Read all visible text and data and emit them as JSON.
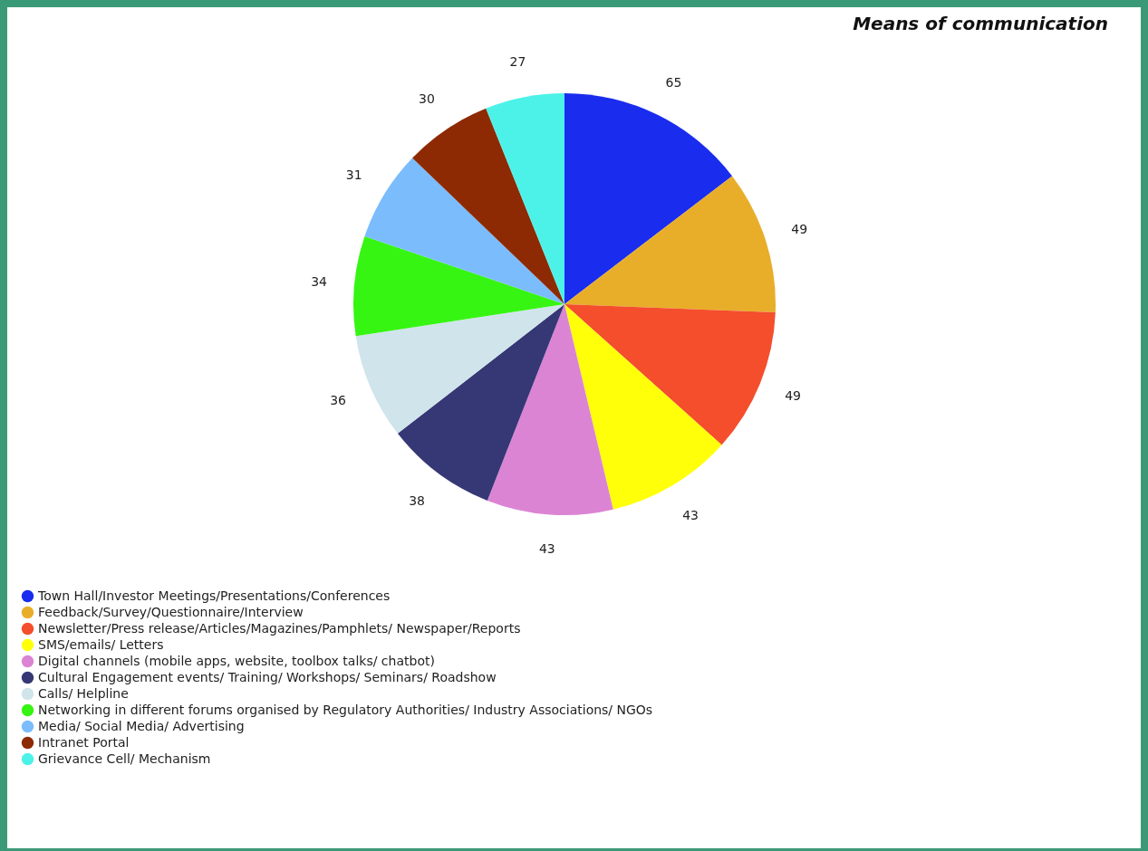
{
  "chart_data": {
    "type": "pie",
    "title": "Means of communication",
    "categories": [
      "Town Hall/Investor Meetings/Presentations/Conferences",
      "Feedback/Survey/Questionnaire/Interview",
      "Newsletter/Press release/Articles/Magazines/Pamphlets/ Newspaper/Reports",
      "SMS/emails/ Letters",
      "Digital channels (mobile apps, website, toolbox talks/ chatbot)",
      "Cultural Engagement events/ Training/ Workshops/ Seminars/ Roadshow",
      "Calls/ Helpline",
      "Networking in different forums organised by Regulatory Authorities/ Industry Associations/ NGOs",
      "Media/ Social Media/ Advertising",
      "Intranet Portal",
      "Grievance Cell/ Mechanism"
    ],
    "values": [
      65,
      49,
      49,
      43,
      43,
      38,
      36,
      34,
      31,
      30,
      27
    ],
    "colors": [
      "#1a2cee",
      "#e8ae2a",
      "#f44e2c",
      "#ffff0a",
      "#dc84d4",
      "#363775",
      "#d0e4eb",
      "#36f513",
      "#7bbcfd",
      "#8d2a04",
      "#4cf2e8"
    ],
    "data_labels": true,
    "legend": "bottom"
  }
}
